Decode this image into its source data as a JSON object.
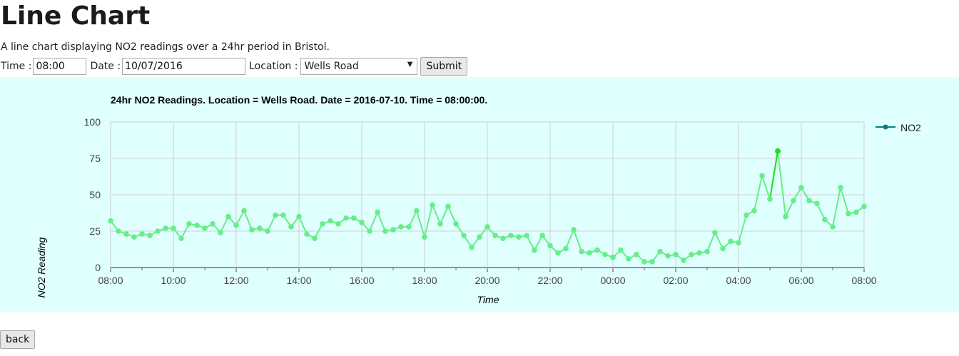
{
  "page": {
    "title": "Line Chart",
    "description": "A line chart displaying NO2 readings over a 24hr period in Bristol."
  },
  "form": {
    "time_label": "Time :",
    "time_value": "08:00",
    "date_label": "Date :",
    "date_value": "10/07/2016",
    "location_label": "Location :",
    "location_value": "Wells Road",
    "submit_label": "Submit"
  },
  "back_label": "back",
  "colors": {
    "panel_bg": "#e0ffff",
    "line": "#66ee88",
    "highlight": "#22dd22",
    "legend": "#008080"
  },
  "chart_data": {
    "type": "line",
    "title": "24hr NO2 Readings. Location = Wells Road. Date = 2016-07-10. Time = 08:00:00.",
    "xlabel": "Time",
    "ylabel": "NO2 Reading",
    "x_ticks": [
      "08:00",
      "10:00",
      "12:00",
      "14:00",
      "16:00",
      "18:00",
      "20:00",
      "22:00",
      "00:00",
      "02:00",
      "04:00",
      "06:00",
      "08:00"
    ],
    "y_ticks": [
      0,
      25,
      50,
      75,
      100
    ],
    "ylim": [
      0,
      100
    ],
    "x_range_hours": [
      0,
      24
    ],
    "grid": true,
    "legend_position": "top-right",
    "series": [
      {
        "name": "NO2",
        "step_minutes": 15,
        "values": [
          32,
          25,
          23,
          21,
          23,
          22,
          25,
          27,
          27,
          20,
          30,
          29,
          27,
          30,
          24,
          35,
          29,
          39,
          26,
          27,
          25,
          36,
          36,
          28,
          35,
          23,
          20,
          30,
          32,
          30,
          34,
          34,
          31,
          25,
          38,
          25,
          26,
          28,
          28,
          39,
          21,
          43,
          30,
          42,
          30,
          22,
          14,
          21,
          28,
          22,
          20,
          22,
          21,
          22,
          12,
          22,
          15,
          10,
          13,
          26,
          11,
          10,
          12,
          9,
          7,
          12,
          6,
          9,
          4,
          4,
          11,
          8,
          9,
          5,
          9,
          10,
          11,
          24,
          13,
          18,
          17,
          36,
          39,
          63,
          47,
          80,
          35,
          46,
          55,
          46,
          44,
          33,
          28,
          55,
          37,
          38,
          42
        ]
      }
    ],
    "highlight_point_index": 85
  }
}
